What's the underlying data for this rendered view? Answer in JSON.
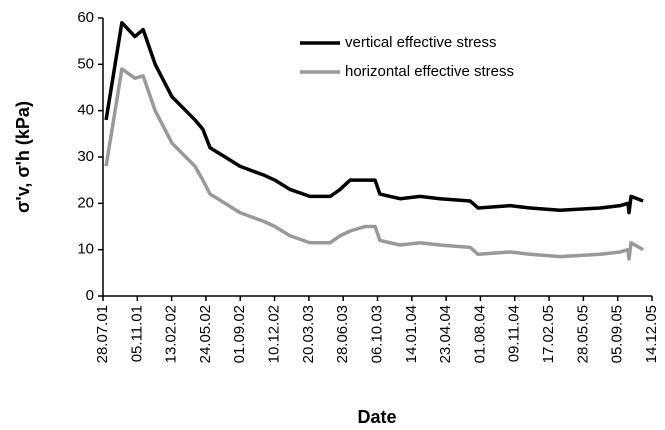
{
  "chart_data": {
    "type": "line",
    "xlabel": "Date",
    "ylabel": "σ'v, σ'h (kPa)",
    "x": [
      "2001-08-06",
      "2001-09-21",
      "2001-10-29",
      "2001-11-22",
      "2001-12-27",
      "2002-02-14",
      "2002-04-22",
      "2002-05-15",
      "2002-06-05",
      "2002-07-19",
      "2002-08-31",
      "2002-11-12",
      "2002-12-11",
      "2003-01-24",
      "2003-03-23",
      "2003-05-21",
      "2003-06-19",
      "2003-07-18",
      "2003-08-31",
      "2003-09-29",
      "2003-10-13",
      "2003-12-11",
      "2004-02-07",
      "2004-04-05",
      "2004-07-02",
      "2004-07-25",
      "2004-10-26",
      "2004-12-24",
      "2005-03-21",
      "2005-07-16",
      "2005-09-12",
      "2005-10-05",
      "2005-10-08",
      "2005-10-14",
      "2005-11-18"
    ],
    "series": [
      {
        "name": "vertical effective stress",
        "color": "#000000",
        "values": [
          38,
          59,
          56,
          57.5,
          50,
          43,
          38,
          36,
          32,
          30,
          28,
          26,
          25,
          23,
          21.5,
          21.5,
          23,
          25,
          25,
          25,
          22,
          21,
          21.5,
          21,
          20.5,
          19,
          19.5,
          19,
          18.5,
          19,
          19.5,
          20,
          18,
          21.5,
          20.5
        ]
      },
      {
        "name": "horizontal effective stress",
        "color": "#999999",
        "values": [
          28,
          49,
          47,
          47.5,
          40,
          33,
          28,
          25,
          22,
          20,
          18,
          16,
          15,
          13,
          11.5,
          11.5,
          13,
          14,
          15,
          15,
          12,
          11,
          11.5,
          11,
          10.5,
          9,
          9.5,
          9,
          8.5,
          9,
          9.5,
          10,
          8,
          11.5,
          10
        ]
      }
    ],
    "xlim": [
      "2001-07-28",
      "2005-12-14"
    ],
    "xticks": [
      {
        "value": "2001-07-28",
        "label": "28.07.01"
      },
      {
        "value": "2001-11-05",
        "label": "05.11.01"
      },
      {
        "value": "2002-02-13",
        "label": "13.02.02"
      },
      {
        "value": "2002-05-24",
        "label": "24.05.02"
      },
      {
        "value": "2002-09-01",
        "label": "01.09.02"
      },
      {
        "value": "2002-12-10",
        "label": "10.12.02"
      },
      {
        "value": "2003-03-20",
        "label": "20.03.03"
      },
      {
        "value": "2003-06-28",
        "label": "28.06.03"
      },
      {
        "value": "2003-10-06",
        "label": "06.10.03"
      },
      {
        "value": "2004-01-14",
        "label": "14.01.04"
      },
      {
        "value": "2004-04-23",
        "label": "23.04.04"
      },
      {
        "value": "2004-08-01",
        "label": "01.08.04"
      },
      {
        "value": "2004-11-09",
        "label": "09.11.04"
      },
      {
        "value": "2005-02-17",
        "label": "17.02.05"
      },
      {
        "value": "2005-05-28",
        "label": "28.05.05"
      },
      {
        "value": "2005-09-05",
        "label": "05.09.05"
      },
      {
        "value": "2005-12-14",
        "label": "14.12.05"
      }
    ],
    "ylim": [
      0,
      60
    ],
    "yticks": [
      0,
      10,
      20,
      30,
      40,
      50,
      60
    ],
    "legend": "upper right"
  }
}
